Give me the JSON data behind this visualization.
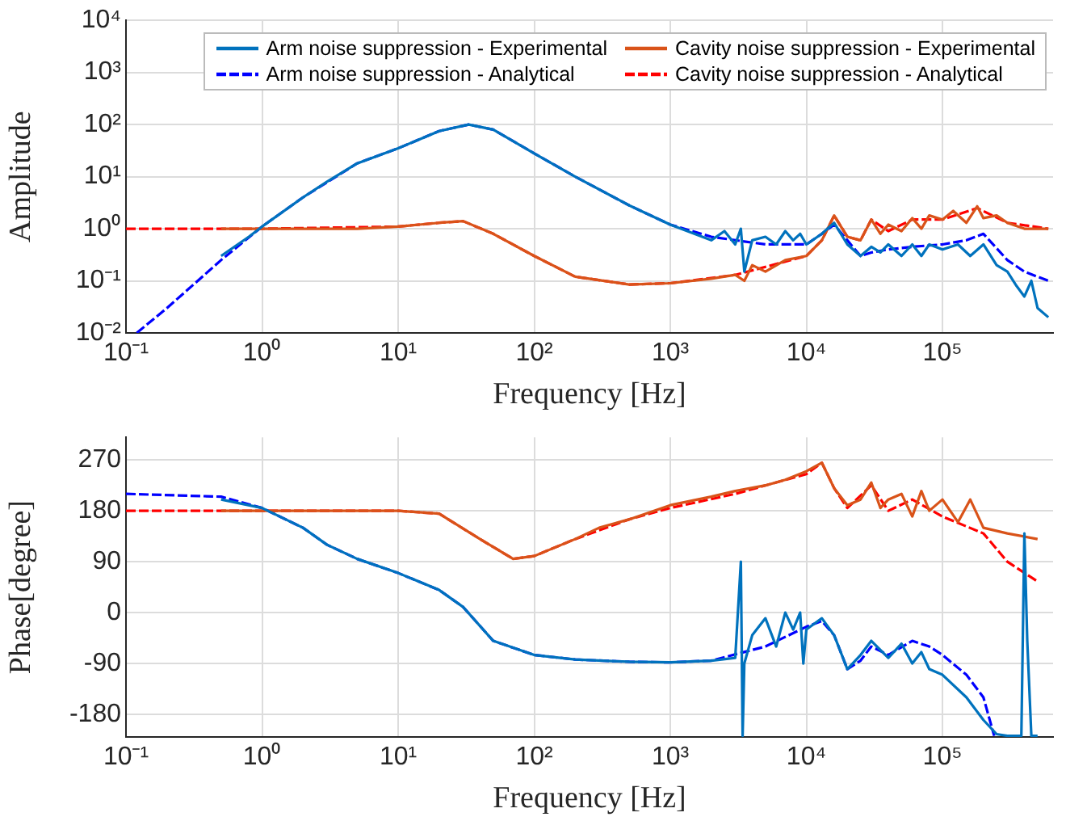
{
  "chart_data": [
    {
      "type": "line",
      "xlabel": "Frequency [Hz]",
      "ylabel": "Amplitude",
      "log": "xy",
      "grid": true,
      "legend": "top right",
      "xlim": [
        0.1,
        650000
      ],
      "ylim": [
        0.01,
        10000
      ],
      "xticks": [
        {
          "value": 0.1,
          "label": "10⁻¹"
        },
        {
          "value": 1,
          "label": "10⁰"
        },
        {
          "value": 10,
          "label": "10¹"
        },
        {
          "value": 100,
          "label": "10²"
        },
        {
          "value": 1000,
          "label": "10³"
        },
        {
          "value": 10000,
          "label": "10⁴"
        },
        {
          "value": 100000,
          "label": "10⁵"
        }
      ],
      "yticks": [
        {
          "value": 0.01,
          "label": "10⁻²"
        },
        {
          "value": 0.1,
          "label": "10⁻¹"
        },
        {
          "value": 1,
          "label": "10⁰"
        },
        {
          "value": 10,
          "label": "10¹"
        },
        {
          "value": 100,
          "label": "10²"
        },
        {
          "value": 1000,
          "label": "10³"
        },
        {
          "value": 10000,
          "label": "10⁴"
        }
      ],
      "series": [
        {
          "name": "Arm noise suppression - Experimental",
          "color": "#0072bd",
          "line_style": "solid",
          "x": [
            0.5,
            0.8,
            1,
            2,
            3,
            5,
            10,
            20,
            33,
            50,
            100,
            200,
            500,
            1000,
            1500,
            2000,
            2500,
            3000,
            3300,
            3500,
            4000,
            5000,
            6000,
            7000,
            8000,
            9000,
            10000,
            13000,
            16000,
            20000,
            25000,
            30000,
            35000,
            40000,
            50000,
            60000,
            70000,
            80000,
            100000,
            130000,
            160000,
            200000,
            250000,
            300000,
            350000,
            400000,
            450000,
            500000,
            600000
          ],
          "values": [
            0.3,
            0.7,
            1.1,
            4,
            8,
            18,
            35,
            75,
            100,
            80,
            28,
            10,
            2.8,
            1.2,
            0.8,
            0.6,
            0.9,
            0.5,
            1.0,
            0.15,
            0.6,
            0.7,
            0.5,
            0.9,
            0.6,
            0.8,
            0.5,
            0.8,
            1.3,
            0.5,
            0.3,
            0.45,
            0.35,
            0.5,
            0.3,
            0.5,
            0.3,
            0.5,
            0.4,
            0.5,
            0.3,
            0.5,
            0.2,
            0.15,
            0.08,
            0.05,
            0.1,
            0.03,
            0.02
          ]
        },
        {
          "name": "Cavity noise suppression - Experimental",
          "color": "#d95319",
          "line_style": "solid",
          "x": [
            0.5,
            1,
            5,
            10,
            20,
            30,
            50,
            100,
            200,
            500,
            1000,
            2000,
            3000,
            3500,
            4000,
            5000,
            7000,
            10000,
            13000,
            16000,
            20000,
            25000,
            30000,
            35000,
            40000,
            50000,
            60000,
            70000,
            80000,
            100000,
            120000,
            150000,
            180000,
            200000,
            250000,
            300000,
            400000,
            600000
          ],
          "values": [
            1,
            1,
            1,
            1.1,
            1.3,
            1.4,
            0.8,
            0.3,
            0.12,
            0.085,
            0.09,
            0.11,
            0.13,
            0.1,
            0.2,
            0.15,
            0.25,
            0.3,
            0.6,
            1.8,
            0.7,
            0.6,
            1.5,
            0.8,
            1.2,
            0.9,
            1.6,
            1.0,
            1.8,
            1.5,
            2.2,
            1.3,
            2.7,
            1.6,
            1.8,
            1.3,
            1.0,
            1.0
          ]
        },
        {
          "name": "Arm noise suppression - Analytical",
          "color": "#0000ff",
          "line_style": "dashed",
          "x": [
            0.12,
            0.2,
            0.5,
            1,
            2,
            5,
            10,
            20,
            33,
            50,
            100,
            200,
            500,
            1000,
            2000,
            5000,
            10000,
            13000,
            16000,
            20000,
            25000,
            30000,
            40000,
            60000,
            100000,
            150000,
            200000,
            300000,
            400000,
            600000
          ],
          "values": [
            0.01,
            0.03,
            0.25,
            1.1,
            4,
            18,
            35,
            75,
            100,
            80,
            28,
            10,
            2.8,
            1.2,
            0.7,
            0.5,
            0.5,
            0.8,
            1.2,
            0.6,
            0.3,
            0.35,
            0.4,
            0.45,
            0.5,
            0.6,
            0.8,
            0.25,
            0.15,
            0.1
          ]
        },
        {
          "name": "Cavity noise suppression - Analytical",
          "color": "#ff0000",
          "line_style": "dashed",
          "x": [
            0.1,
            1,
            10,
            20,
            30,
            50,
            100,
            200,
            500,
            1000,
            3000,
            10000,
            13000,
            16000,
            20000,
            25000,
            30000,
            40000,
            60000,
            100000,
            180000,
            300000,
            600000
          ],
          "values": [
            1,
            1,
            1.1,
            1.3,
            1.4,
            0.8,
            0.3,
            0.12,
            0.085,
            0.09,
            0.13,
            0.3,
            0.6,
            1.8,
            0.7,
            0.6,
            1.5,
            0.9,
            1.5,
            1.5,
            2.5,
            1.3,
            1.0
          ]
        }
      ]
    },
    {
      "type": "line",
      "xlabel": "Frequency [Hz]",
      "ylabel": "Phase[degree]",
      "log": "x",
      "grid": true,
      "xlim": [
        0.1,
        650000
      ],
      "ylim": [
        -220,
        310
      ],
      "xticks": [
        {
          "value": 0.1,
          "label": "10⁻¹"
        },
        {
          "value": 1,
          "label": "10⁰"
        },
        {
          "value": 10,
          "label": "10¹"
        },
        {
          "value": 100,
          "label": "10²"
        },
        {
          "value": 1000,
          "label": "10³"
        },
        {
          "value": 10000,
          "label": "10⁴"
        },
        {
          "value": 100000,
          "label": "10⁵"
        }
      ],
      "yticks": [
        -180,
        -90,
        0,
        90,
        180,
        270
      ],
      "series": [
        {
          "color": "#0072bd",
          "line_style": "solid",
          "x": [
            0.5,
            1,
            2,
            3,
            5,
            10,
            20,
            30,
            50,
            100,
            200,
            500,
            1000,
            2000,
            3000,
            3300,
            3400,
            3500,
            4000,
            5000,
            6000,
            7000,
            8000,
            9000,
            9500,
            10000,
            13000,
            16000,
            20000,
            25000,
            30000,
            40000,
            50000,
            60000,
            70000,
            80000,
            100000,
            150000,
            200000,
            250000,
            300000,
            380000,
            400000,
            420000,
            450000,
            500000
          ],
          "values": [
            200,
            185,
            150,
            120,
            95,
            70,
            40,
            10,
            -50,
            -75,
            -83,
            -87,
            -88,
            -85,
            -80,
            90,
            -218,
            -90,
            -40,
            -10,
            -60,
            0,
            -30,
            0,
            -90,
            -30,
            -10,
            -40,
            -100,
            -75,
            -50,
            -80,
            -55,
            -90,
            -70,
            -100,
            -110,
            -150,
            -190,
            -215,
            -218,
            -218,
            140,
            -50,
            -218,
            -218
          ]
        },
        {
          "color": "#d95319",
          "line_style": "solid",
          "x": [
            0.5,
            1,
            5,
            10,
            20,
            40,
            70,
            100,
            200,
            300,
            500,
            1000,
            2000,
            3000,
            5000,
            7000,
            10000,
            13000,
            16000,
            20000,
            25000,
            30000,
            35000,
            40000,
            50000,
            60000,
            70000,
            80000,
            100000,
            130000,
            160000,
            200000,
            300000,
            500000
          ],
          "values": [
            180,
            180,
            180,
            180,
            175,
            130,
            95,
            100,
            130,
            150,
            165,
            190,
            205,
            215,
            225,
            235,
            250,
            265,
            220,
            190,
            200,
            230,
            185,
            200,
            210,
            170,
            215,
            180,
            200,
            160,
            200,
            150,
            140,
            130
          ]
        },
        {
          "color": "#0000ff",
          "line_style": "dashed",
          "x": [
            0.1,
            0.5,
            1,
            2,
            3,
            5,
            10,
            20,
            30,
            50,
            100,
            200,
            500,
            1000,
            2000,
            5000,
            10000,
            13000,
            16000,
            20000,
            25000,
            30000,
            40000,
            60000,
            80000,
            100000,
            150000,
            200000,
            240000
          ],
          "values": [
            210,
            205,
            185,
            150,
            120,
            95,
            70,
            40,
            10,
            -50,
            -75,
            -83,
            -87,
            -88,
            -85,
            -60,
            -25,
            -15,
            -40,
            -100,
            -85,
            -60,
            -75,
            -50,
            -60,
            -75,
            -110,
            -150,
            -218
          ]
        },
        {
          "color": "#ff0000",
          "line_style": "dashed",
          "x": [
            0.1,
            1,
            10,
            20,
            40,
            70,
            100,
            200,
            500,
            1000,
            3000,
            10000,
            13000,
            16000,
            20000,
            30000,
            40000,
            60000,
            100000,
            200000,
            300000,
            500000
          ],
          "values": [
            180,
            180,
            180,
            175,
            130,
            95,
            100,
            130,
            165,
            185,
            210,
            245,
            265,
            220,
            185,
            225,
            180,
            200,
            170,
            140,
            90,
            55
          ]
        }
      ]
    }
  ]
}
